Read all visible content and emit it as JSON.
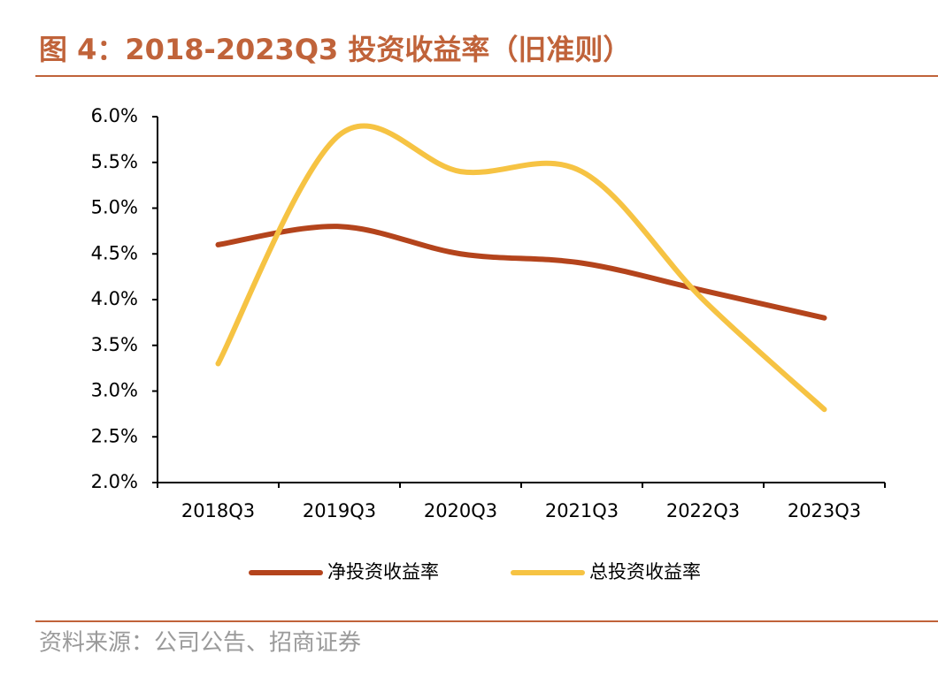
{
  "chart_data": {
    "type": "line",
    "title": "图 4：2018-2023Q3 投资收益率（旧准则）",
    "source": "资料来源：公司公告、招商证券",
    "categories": [
      "2018Q3",
      "2019Q3",
      "2020Q3",
      "2021Q3",
      "2022Q3",
      "2023Q3"
    ],
    "series": [
      {
        "name": "净投资收益率",
        "color": "#b4441c",
        "values": [
          4.6,
          4.8,
          4.5,
          4.4,
          4.1,
          3.8
        ]
      },
      {
        "name": "总投资收益率",
        "color": "#f6c343",
        "values": [
          3.3,
          5.8,
          5.4,
          5.4,
          4.0,
          2.8
        ]
      }
    ],
    "ylim": [
      2.0,
      6.0
    ],
    "yticks": [
      {
        "value": 2.0,
        "label": "2.0%"
      },
      {
        "value": 2.5,
        "label": "2.5%"
      },
      {
        "value": 3.0,
        "label": "3.0%"
      },
      {
        "value": 3.5,
        "label": "3.5%"
      },
      {
        "value": 4.0,
        "label": "4.0%"
      },
      {
        "value": 4.5,
        "label": "4.5%"
      },
      {
        "value": 5.0,
        "label": "5.0%"
      },
      {
        "value": 5.5,
        "label": "5.5%"
      },
      {
        "value": 6.0,
        "label": "6.0%"
      }
    ],
    "grid": false,
    "smooth": true,
    "legend": "bottom"
  }
}
